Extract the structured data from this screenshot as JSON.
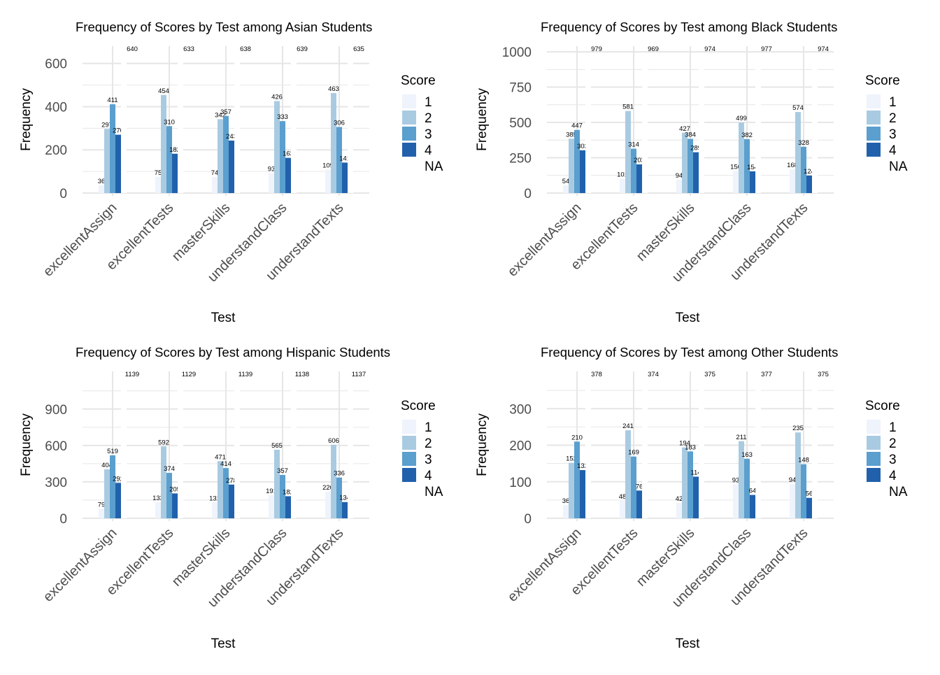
{
  "chart_data": [
    {
      "type": "bar",
      "title": "Frequency of Scores by Test among Asian Students",
      "xlabel": "Test",
      "ylabel": "Frequency",
      "categories": [
        "excellentAssign",
        "excellentTests",
        "masterSkills",
        "understandClass",
        "understandTexts"
      ],
      "ylim": [
        0,
        680
      ],
      "yticks": [
        0,
        200,
        400,
        600
      ],
      "series": [
        {
          "name": "1",
          "values": [
            36,
            75,
            74,
            93,
            109
          ]
        },
        {
          "name": "2",
          "values": [
            297,
            454,
            342,
            426,
            463
          ]
        },
        {
          "name": "3",
          "values": [
            411,
            310,
            357,
            333,
            306
          ]
        },
        {
          "name": "4",
          "values": [
            270,
            182,
            243,
            163,
            141
          ]
        },
        {
          "name": "NA",
          "values": [
            640,
            633,
            638,
            639,
            635
          ]
        }
      ],
      "legend": {
        "title": "Score",
        "position": "right"
      },
      "grid": true
    },
    {
      "type": "bar",
      "title": "Frequency of Scores by Test among Black Students",
      "xlabel": "Test",
      "ylabel": "Frequency",
      "categories": [
        "excellentAssign",
        "excellentTests",
        "masterSkills",
        "understandClass",
        "understandTexts"
      ],
      "ylim": [
        0,
        1040
      ],
      "yticks": [
        0,
        250,
        500,
        750,
        1000
      ],
      "series": [
        {
          "name": "1",
          "values": [
            54,
            101,
            94,
            156,
            168
          ]
        },
        {
          "name": "2",
          "values": [
            385,
            581,
            427,
            499,
            574
          ]
        },
        {
          "name": "3",
          "values": [
            447,
            314,
            384,
            382,
            328
          ]
        },
        {
          "name": "4",
          "values": [
            303,
            203,
            289,
            154,
            124
          ]
        },
        {
          "name": "NA",
          "values": [
            979,
            969,
            974,
            977,
            974
          ]
        }
      ],
      "legend": {
        "title": "Score",
        "position": "right"
      },
      "grid": true
    },
    {
      "type": "bar",
      "title": "Frequency of Scores by Test among Hispanic Students",
      "xlabel": "Test",
      "ylabel": "Frequency",
      "categories": [
        "excellentAssign",
        "excellentTests",
        "masterSkills",
        "understandClass",
        "understandTexts"
      ],
      "ylim": [
        0,
        1210
      ],
      "yticks": [
        0,
        300,
        600,
        900
      ],
      "series": [
        {
          "name": "1",
          "values": [
            79,
            133,
            131,
            191,
            220
          ]
        },
        {
          "name": "2",
          "values": [
            404,
            592,
            471,
            565,
            606
          ]
        },
        {
          "name": "3",
          "values": [
            519,
            374,
            414,
            357,
            336
          ]
        },
        {
          "name": "4",
          "values": [
            292,
            205,
            278,
            182,
            134
          ]
        },
        {
          "name": "NA",
          "values": [
            1139,
            1129,
            1139,
            1138,
            1137
          ]
        }
      ],
      "legend": {
        "title": "Score",
        "position": "right"
      },
      "grid": true
    },
    {
      "type": "bar",
      "title": "Frequency of Scores by Test among Other Students",
      "xlabel": "Test",
      "ylabel": "Frequency",
      "categories": [
        "excellentAssign",
        "excellentTests",
        "masterSkills",
        "understandClass",
        "understandTexts"
      ],
      "ylim": [
        0,
        402
      ],
      "yticks": [
        0,
        100,
        200,
        300
      ],
      "series": [
        {
          "name": "1",
          "values": [
            36,
            48,
            42,
            93,
            94
          ]
        },
        {
          "name": "2",
          "values": [
            152,
            241,
            194,
            211,
            235
          ]
        },
        {
          "name": "3",
          "values": [
            210,
            169,
            183,
            163,
            148
          ]
        },
        {
          "name": "4",
          "values": [
            132,
            76,
            114,
            64,
            56
          ]
        },
        {
          "name": "NA",
          "values": [
            378,
            374,
            375,
            377,
            375
          ]
        }
      ],
      "legend": {
        "title": "Score",
        "position": "right"
      },
      "grid": true
    }
  ],
  "colors": {
    "1": "#eef3fc",
    "2": "#a9cbe2",
    "3": "#5a9fce",
    "4": "#2161ac",
    "NA": "#ffffff",
    "grid": "#e6e6e6",
    "text": "#000000",
    "axis_text": "#4d4d4d"
  }
}
